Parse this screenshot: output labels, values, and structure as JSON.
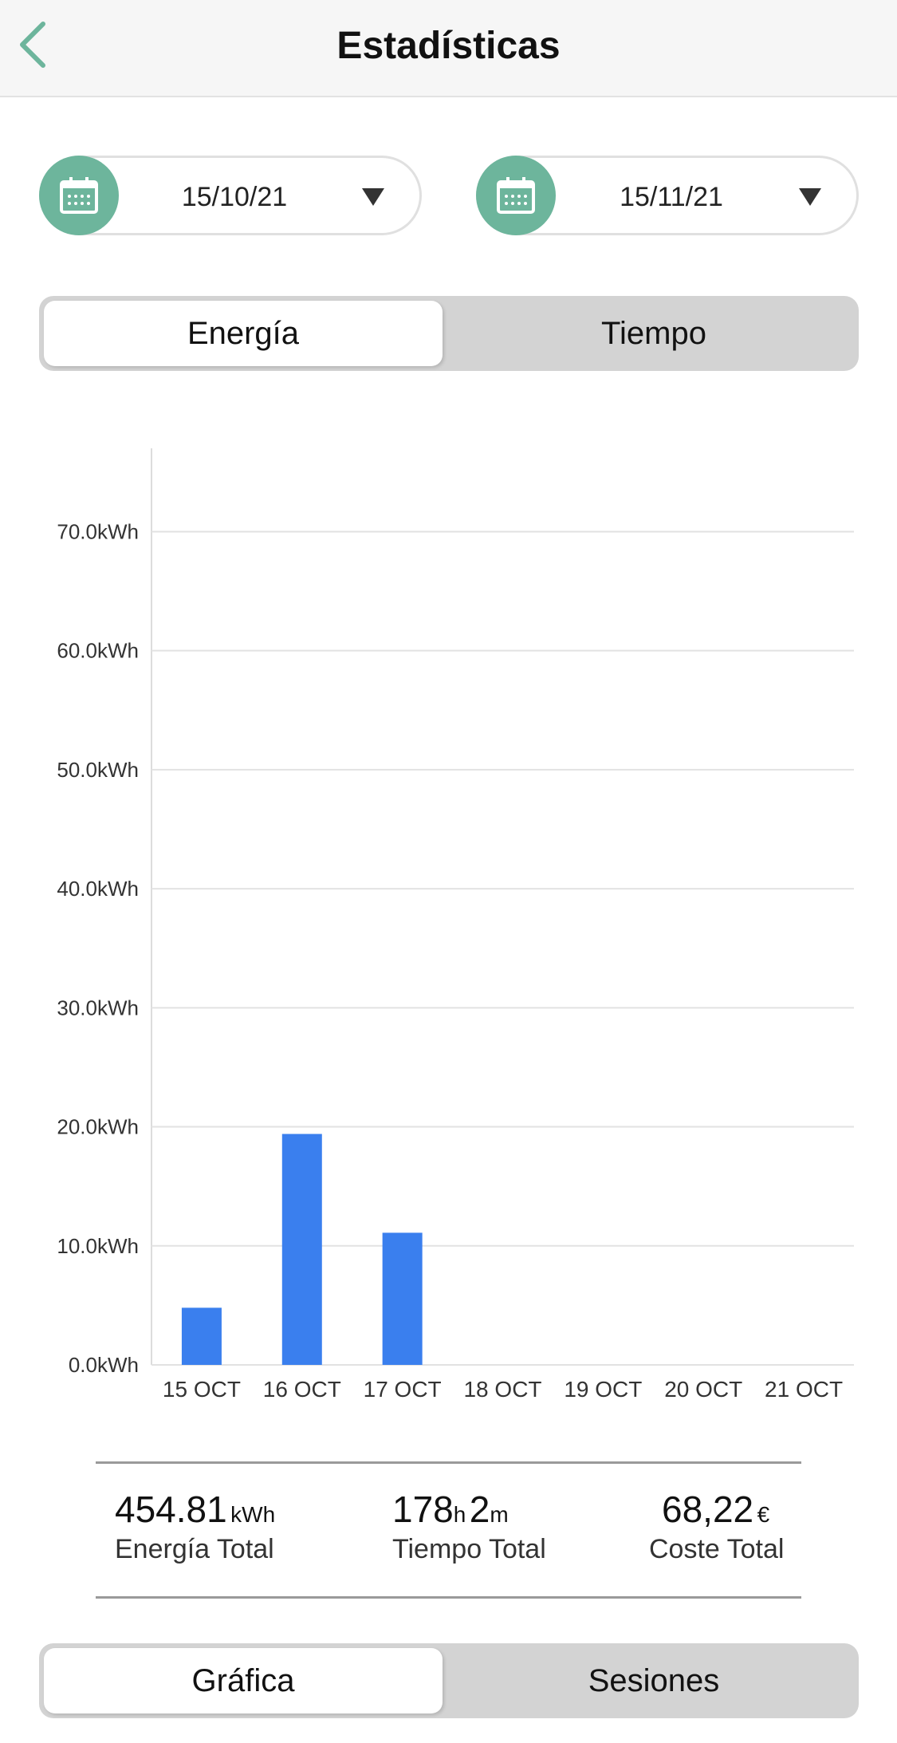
{
  "header": {
    "title": "Estadísticas",
    "back_icon": "chevron-left-icon",
    "accent": "#6db59c"
  },
  "date_range": {
    "start": "15/10/21",
    "end": "15/11/21"
  },
  "metric_toggle": {
    "options": [
      "Energía",
      "Tiempo"
    ],
    "selected": "Energía"
  },
  "chart_data": {
    "type": "bar",
    "categories": [
      "15 OCT",
      "16 OCT",
      "17 OCT",
      "18 OCT",
      "19 OCT",
      "20 OCT",
      "21 OCT"
    ],
    "values": [
      4.8,
      19.4,
      11.1,
      0,
      0,
      0,
      0
    ],
    "y_ticks": [
      "0.0kWh",
      "10.0kWh",
      "20.0kWh",
      "30.0kWh",
      "40.0kWh",
      "50.0kWh",
      "60.0kWh",
      "70.0kWh"
    ],
    "tick_values": [
      0,
      10,
      20,
      30,
      40,
      50,
      60,
      70
    ],
    "ylim": [
      0,
      77
    ],
    "grid": true,
    "bar_color": "#3a7fee"
  },
  "summary": {
    "energy": {
      "value": "454.81",
      "unit": "kWh",
      "label": "Energía Total"
    },
    "time": {
      "hours": "178",
      "h_unit": "h",
      "minutes": "2",
      "m_unit": "m",
      "label": "Tiempo Total"
    },
    "cost": {
      "value": "68,22",
      "unit": "€",
      "label": "Coste Total"
    }
  },
  "view_toggle": {
    "options": [
      "Gráfica",
      "Sesiones"
    ],
    "selected": "Gráfica"
  }
}
